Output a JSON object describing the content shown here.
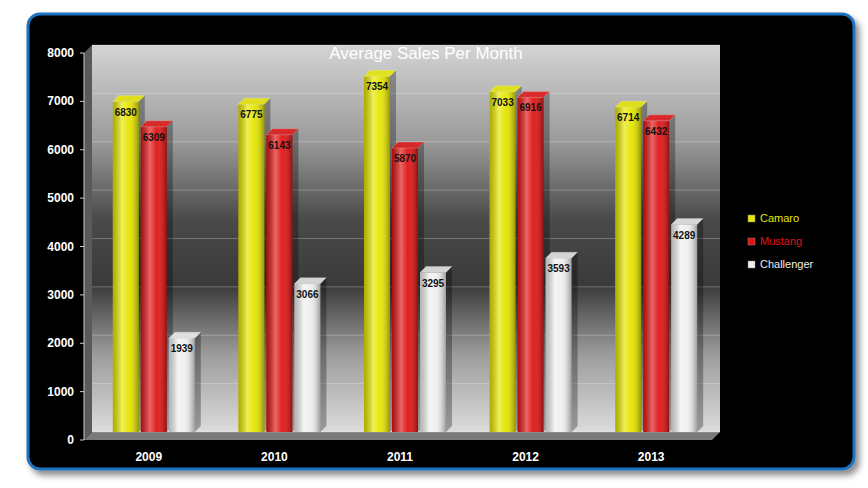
{
  "chart_data": {
    "type": "bar",
    "title": "Average Sales Per Month",
    "categories": [
      "2009",
      "2010",
      "2011",
      "2012",
      "2013"
    ],
    "series": [
      {
        "name": "Camaro",
        "color": "#e6e600",
        "values": [
          6830,
          6775,
          7354,
          7033,
          6714
        ]
      },
      {
        "name": "Mustang",
        "color": "#e01414",
        "values": [
          6309,
          6143,
          5870,
          6916,
          6432
        ]
      },
      {
        "name": "Challenger",
        "color": "#efefef",
        "values": [
          1939,
          3066,
          3295,
          3593,
          4289
        ]
      }
    ],
    "ylim": [
      0,
      8000
    ],
    "yticks": [
      0,
      1000,
      2000,
      3000,
      4000,
      5000,
      6000,
      7000,
      8000
    ],
    "grid": true,
    "legend": "right",
    "data_labels": true
  }
}
